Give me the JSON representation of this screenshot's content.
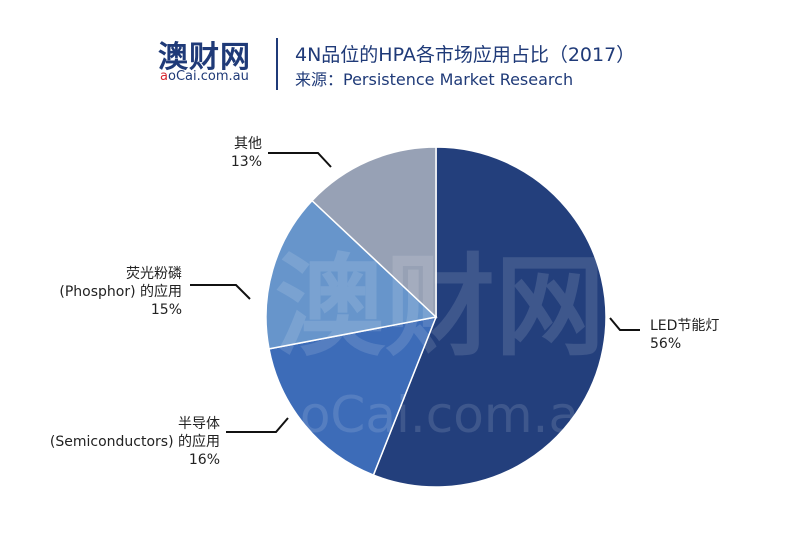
{
  "header": {
    "logo_cn": "澳财网",
    "logo_en_a": "a",
    "logo_en_o": "o",
    "logo_en_rest": "Cai.com.au",
    "title": "4N品位的HPA各市场应用占比（2017）",
    "source": "来源：Persistence Market Research"
  },
  "watermark": {
    "cn": "澳财网",
    "en": "aoCai.com.au"
  },
  "colors": {
    "brand": "#1f3a78",
    "led": "#233f7c",
    "semiconductors": "#3d6cb8",
    "phosphor": "#6795cb",
    "other": "#97a1b5"
  },
  "chart_data": {
    "type": "pie",
    "title": "4N品位的HPA各市场应用占比（2017）",
    "slices": [
      {
        "label_lines": [
          "LED节能灯"
        ],
        "value": 56,
        "value_label": "56%",
        "color": "#233f7c"
      },
      {
        "label_lines": [
          "半导体",
          "(Semiconductors) 的应用"
        ],
        "value": 16,
        "value_label": "16%",
        "color": "#3d6cb8"
      },
      {
        "label_lines": [
          "荧光粉磷",
          "(Phosphor) 的应用"
        ],
        "value": 15,
        "value_label": "15%",
        "color": "#6795cb"
      },
      {
        "label_lines": [
          "其他"
        ],
        "value": 13,
        "value_label": "13%",
        "color": "#97a1b5"
      }
    ]
  }
}
